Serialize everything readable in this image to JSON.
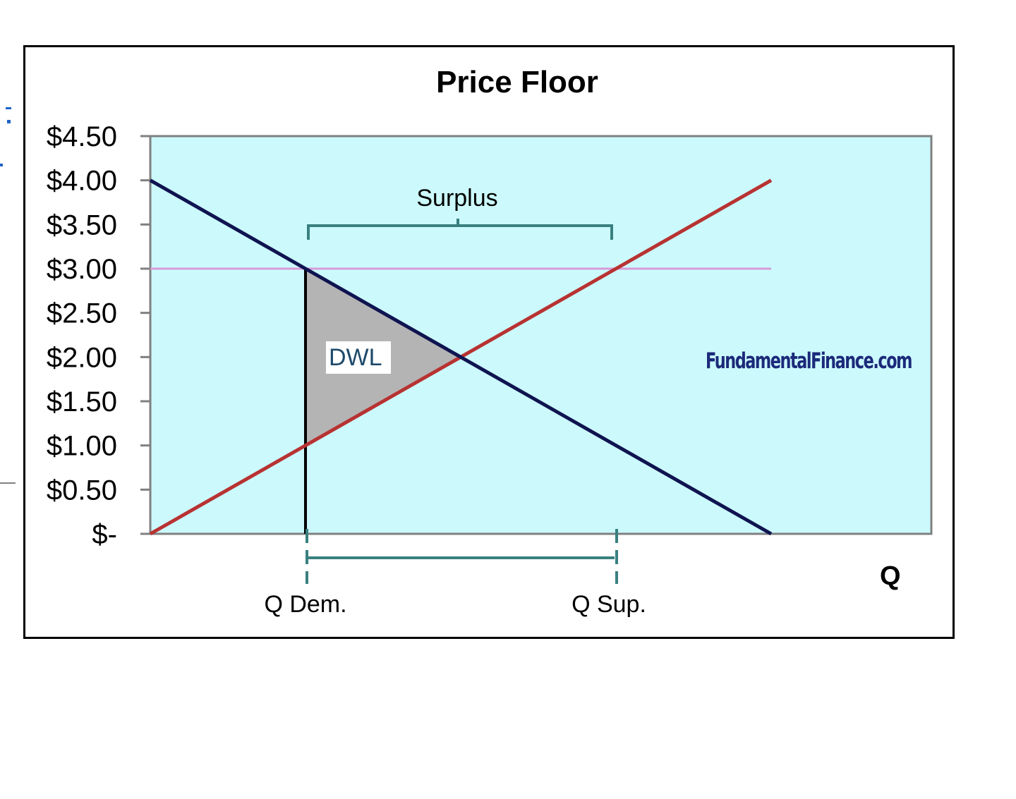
{
  "chart_data": {
    "type": "line",
    "title": "Price Floor",
    "xlabel": "Q",
    "ylabel": "",
    "ylim": [
      0,
      4.5
    ],
    "xlim": [
      0,
      10
    ],
    "y_ticks": [
      {
        "value": 4.5,
        "label": "$4.50"
      },
      {
        "value": 4.0,
        "label": "$4.00"
      },
      {
        "value": 3.5,
        "label": "$3.50"
      },
      {
        "value": 3.0,
        "label": "$3.00"
      },
      {
        "value": 2.5,
        "label": "$2.50"
      },
      {
        "value": 2.0,
        "label": "$2.00"
      },
      {
        "value": 1.5,
        "label": "$1.50"
      },
      {
        "value": 1.0,
        "label": "$1.00"
      },
      {
        "value": 0.5,
        "label": "$0.50"
      },
      {
        "value": 0.0,
        "label": "$-"
      }
    ],
    "series": [
      {
        "key": "demand",
        "color": "#0f1450",
        "x": [
          0,
          1,
          2,
          3,
          4,
          5,
          6,
          7,
          8
        ],
        "y": [
          4,
          3.5,
          3,
          2.5,
          2,
          1.5,
          1,
          0.5,
          0
        ]
      },
      {
        "key": "supply",
        "color": "#b83232",
        "x": [
          0,
          1,
          2,
          3,
          4,
          5,
          6,
          7,
          8
        ],
        "y": [
          0,
          0.5,
          1,
          1.5,
          2,
          2.5,
          3,
          3.5,
          4
        ]
      },
      {
        "key": "price_floor",
        "color": "#d89ad8",
        "x": [
          0,
          8
        ],
        "y": [
          3,
          3
        ]
      }
    ],
    "dwl_triangle": {
      "x": [
        2,
        2,
        4
      ],
      "y": [
        3,
        1,
        2
      ],
      "color": "#b4b4b4"
    },
    "q_demanded": 2,
    "q_supplied": 6,
    "annotations": {
      "surplus": "Surplus",
      "dwl": "DWL",
      "q_dem": "Q Dem.",
      "q_sup": "Q Sup.",
      "watermark": "FundamentalFinance.com"
    },
    "colors": {
      "plot_bg": "#ccfafc",
      "axis": "#808080",
      "bracket": "#3a8080",
      "watermark": "#1c2a7a"
    },
    "grid": false,
    "legend": "none"
  }
}
